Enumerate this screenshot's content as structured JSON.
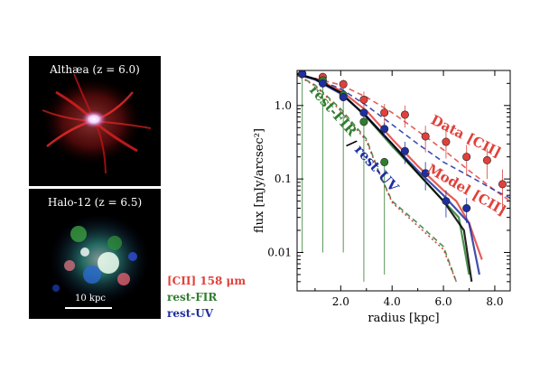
{
  "images": {
    "top": {
      "title": "Althæa (z = 6.0)"
    },
    "bottom": {
      "title": "Halo-12 (z = 6.5)",
      "scale_label": "10 kpc"
    }
  },
  "legend": {
    "cii": {
      "label": "[CII]  158 μm",
      "color": "#e0413a"
    },
    "fir": {
      "label": "rest-FIR",
      "color": "#2f7d2f"
    },
    "uv": {
      "label": "rest-UV",
      "color": "#1f2fa0"
    }
  },
  "chart_data": {
    "type": "line",
    "xlabel": "radius  [kpc]",
    "ylabel": "flux  [mJy/arcsec²]",
    "xlim": [
      0.3,
      8.6
    ],
    "ylim": [
      0.003,
      3.0
    ],
    "yscale": "log",
    "xticks": [
      2.0,
      4.0,
      6.0,
      8.0
    ],
    "xtick_labels": [
      "2.0",
      "4.0",
      "6.0",
      "8.0"
    ],
    "yticks": [
      1.0,
      0.1,
      0.01
    ],
    "ytick_labels": [
      "1.0",
      "0.1",
      "0.01"
    ],
    "annotations": [
      {
        "text": "Data [CII]",
        "color": "#e0413a"
      },
      {
        "text": "Model [CII]",
        "color": "#e0413a"
      },
      {
        "text": "rest-FIR",
        "color": "#2f7d2f"
      },
      {
        "text": "/",
        "color": "#000000"
      },
      {
        "text": "rest-UV",
        "color": "#1f2fa0"
      }
    ],
    "series": [
      {
        "kind": "points",
        "label_ref": "Data [CII]",
        "color": "#e0413a",
        "x": [
          0.5,
          1.3,
          2.1,
          2.9,
          3.7,
          4.5,
          5.3,
          6.1,
          6.9,
          7.7,
          8.3
        ],
        "y": [
          2.7,
          2.45,
          1.95,
          1.2,
          0.8,
          0.75,
          0.38,
          0.32,
          0.2,
          0.18,
          0.085
        ],
        "yerr": [
          0.25,
          0.3,
          0.3,
          0.35,
          0.25,
          0.25,
          0.15,
          0.13,
          0.09,
          0.08,
          0.05
        ]
      },
      {
        "kind": "points",
        "label_ref": "rest-FIR",
        "color": "#2f7d2f",
        "x": [
          0.5,
          1.3,
          2.1,
          2.9,
          3.7
        ],
        "y": [
          2.7,
          2.2,
          1.4,
          0.6,
          0.17
        ],
        "yerr_low": [
          2.69,
          2.19,
          1.39,
          0.596,
          0.165
        ]
      },
      {
        "kind": "points",
        "label_ref": "rest-UV",
        "color": "#1f2fa0",
        "x": [
          0.5,
          1.3,
          2.1,
          2.9,
          3.7,
          4.5,
          5.3,
          6.1,
          6.9
        ],
        "y": [
          2.7,
          2.0,
          1.3,
          0.8,
          0.48,
          0.24,
          0.12,
          0.05,
          0.04
        ],
        "yerr": [
          0.2,
          0.2,
          0.15,
          0.12,
          0.1,
          0.08,
          0.05,
          0.02,
          0.015
        ]
      },
      {
        "kind": "line",
        "label_ref": "Model [CII]",
        "color": "#e0413a",
        "style": "solid",
        "x": [
          0.3,
          1.0,
          2.0,
          3.0,
          4.0,
          5.0,
          6.0,
          6.5,
          7.0,
          7.5
        ],
        "y": [
          2.6,
          2.3,
          1.6,
          0.85,
          0.35,
          0.15,
          0.07,
          0.05,
          0.025,
          0.008
        ]
      },
      {
        "kind": "line",
        "label_ref": "Model [CII]",
        "color": "#e0413a",
        "style": "dashed",
        "x": [
          0.3,
          1.0,
          2.0,
          3.0,
          4.0,
          5.0,
          6.0,
          7.0,
          8.0,
          8.6
        ],
        "y": [
          2.6,
          2.35,
          1.9,
          1.3,
          0.8,
          0.45,
          0.25,
          0.13,
          0.07,
          0.05
        ]
      },
      {
        "kind": "line",
        "label_ref": "rest-FIR",
        "color": "#2f7d2f",
        "style": "solid",
        "x": [
          0.3,
          1.0,
          2.0,
          3.0,
          4.0,
          5.0,
          6.0,
          6.6,
          7.0
        ],
        "y": [
          2.7,
          2.3,
          1.5,
          0.7,
          0.28,
          0.12,
          0.05,
          0.03,
          0.005
        ]
      },
      {
        "kind": "line",
        "label_ref": "rest-UV",
        "color": "#1f2fa0",
        "style": "solid",
        "x": [
          0.3,
          1.0,
          2.0,
          3.0,
          4.0,
          5.0,
          6.0,
          7.0,
          7.4
        ],
        "y": [
          2.7,
          2.25,
          1.45,
          0.72,
          0.3,
          0.13,
          0.06,
          0.025,
          0.005
        ]
      },
      {
        "kind": "line",
        "label_ref": "rest-UV",
        "color": "#1f2fa0",
        "style": "dashed",
        "x": [
          0.3,
          1.0,
          2.0,
          3.0,
          4.0,
          5.0,
          6.0,
          7.0,
          8.0,
          8.6
        ],
        "y": [
          2.7,
          2.3,
          1.7,
          1.0,
          0.55,
          0.3,
          0.17,
          0.11,
          0.07,
          0.055
        ]
      },
      {
        "kind": "line",
        "label_ref": "rest-FIR",
        "color": "#2f7d2f",
        "style": "dashed",
        "x": [
          0.3,
          1.0,
          2.0,
          3.0,
          3.5,
          4.0,
          5.0,
          6.0,
          6.5
        ],
        "y": [
          2.6,
          1.9,
          0.9,
          0.35,
          0.12,
          0.05,
          0.025,
          0.012,
          0.004
        ]
      },
      {
        "kind": "line",
        "label_ref": "Model [CII]",
        "color": "#c0302a",
        "style": "dotted",
        "x": [
          0.3,
          1.0,
          2.0,
          3.0,
          3.5,
          4.0,
          5.0,
          6.0,
          6.5
        ],
        "y": [
          2.6,
          1.85,
          0.85,
          0.33,
          0.12,
          0.048,
          0.023,
          0.011,
          0.004
        ]
      },
      {
        "kind": "line",
        "label_ref": "rest-UV",
        "color": "#000000",
        "style": "solid",
        "x": [
          0.3,
          1.0,
          2.0,
          3.0,
          4.0,
          5.0,
          6.0,
          6.8,
          7.1
        ],
        "y": [
          2.7,
          2.3,
          1.5,
          0.7,
          0.3,
          0.12,
          0.05,
          0.02,
          0.004
        ]
      }
    ]
  }
}
